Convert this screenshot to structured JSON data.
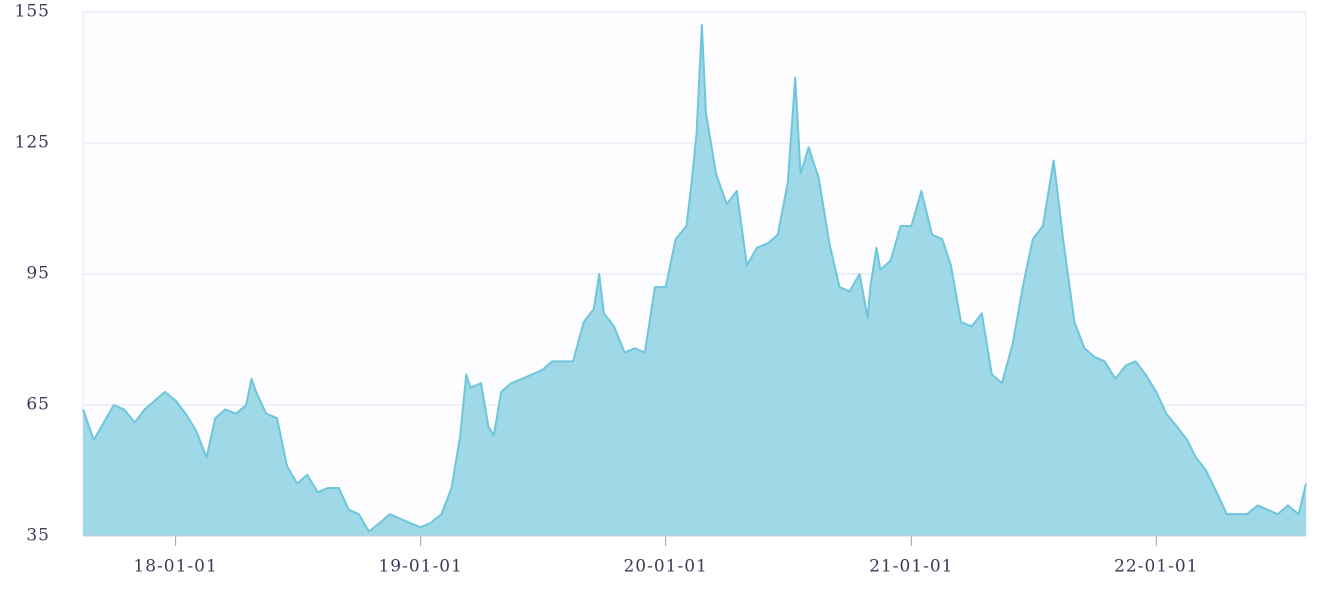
{
  "chart_data": {
    "type": "area",
    "x": [
      "17-08-16",
      "17-09-01",
      "17-09-16",
      "17-10-01",
      "17-10-16",
      "17-11-01",
      "17-11-16",
      "17-12-01",
      "17-12-16",
      "18-01-01",
      "18-01-16",
      "18-02-01",
      "18-02-16",
      "18-03-01",
      "18-03-16",
      "18-04-01",
      "18-04-16",
      "18-04-24",
      "18-05-01",
      "18-05-16",
      "18-06-01",
      "18-06-16",
      "18-07-01",
      "18-07-16",
      "18-08-01",
      "18-08-16",
      "18-09-01",
      "18-09-16",
      "18-10-01",
      "18-10-16",
      "18-11-01",
      "18-11-16",
      "18-12-01",
      "18-12-16",
      "19-01-01",
      "19-01-16",
      "19-02-01",
      "19-02-16",
      "19-03-01",
      "19-03-10",
      "19-03-16",
      "19-04-01",
      "19-04-12",
      "19-04-20",
      "19-05-01",
      "19-05-16",
      "19-06-01",
      "19-06-16",
      "19-07-01",
      "19-07-16",
      "19-08-01",
      "19-08-16",
      "19-09-01",
      "19-09-16",
      "19-09-24",
      "19-10-01",
      "19-10-16",
      "19-11-01",
      "19-11-16",
      "19-12-01",
      "19-12-16",
      "20-01-01",
      "20-01-16",
      "20-02-01",
      "20-02-08",
      "20-02-16",
      "20-02-24",
      "20-03-01",
      "20-03-16",
      "20-04-01",
      "20-04-16",
      "20-05-01",
      "20-05-16",
      "20-06-01",
      "20-06-16",
      "20-07-01",
      "20-07-12",
      "20-07-20",
      "20-08-01",
      "20-08-16",
      "20-09-01",
      "20-09-16",
      "20-10-01",
      "20-10-16",
      "20-10-28",
      "20-11-01",
      "20-11-10",
      "20-11-16",
      "20-12-01",
      "20-12-16",
      "21-01-01",
      "21-01-16",
      "21-02-01",
      "21-02-16",
      "21-03-01",
      "21-03-16",
      "21-04-01",
      "21-04-16",
      "21-05-01",
      "21-05-16",
      "21-06-01",
      "21-06-16",
      "21-07-01",
      "21-07-16",
      "21-08-01",
      "21-08-16",
      "21-09-01",
      "21-09-16",
      "21-10-01",
      "21-10-16",
      "21-11-01",
      "21-11-16",
      "21-12-01",
      "21-12-16",
      "22-01-01",
      "22-01-16",
      "22-02-01",
      "22-02-16",
      "22-03-01",
      "22-03-16",
      "22-04-01",
      "22-04-16",
      "22-05-01",
      "22-05-16",
      "22-06-01",
      "22-06-16",
      "22-07-01",
      "22-07-16",
      "22-08-01",
      "22-08-12"
    ],
    "values": [
      64,
      57,
      61,
      65,
      64,
      61,
      64,
      66,
      68,
      66,
      63,
      59,
      53,
      62,
      64,
      63,
      65,
      71,
      68,
      63,
      62,
      51,
      47,
      49,
      45,
      46,
      46,
      41,
      40,
      36,
      38,
      40,
      39,
      38,
      37,
      38,
      40,
      46,
      58,
      72,
      69,
      70,
      60,
      58,
      68,
      70,
      71,
      72,
      73,
      75,
      75,
      75,
      84,
      87,
      95,
      86,
      83,
      77,
      78,
      77,
      92,
      92,
      103,
      106,
      115,
      127,
      152,
      132,
      118,
      111,
      114,
      97,
      101,
      102,
      104,
      116,
      140,
      118,
      124,
      117,
      102,
      92,
      91,
      95,
      85,
      92,
      101,
      96,
      98,
      106,
      106,
      114,
      104,
      103,
      97,
      84,
      83,
      86,
      72,
      70,
      79,
      92,
      103,
      106,
      121,
      102,
      84,
      78,
      76,
      75,
      71,
      74,
      75,
      72,
      68,
      63,
      60,
      57,
      53,
      50,
      45,
      40,
      40,
      40,
      42,
      41,
      40,
      42,
      40,
      47
    ],
    "color": "#6ec6dc",
    "xlim": [
      "17-08-16",
      "22-08-12"
    ],
    "xticks": [
      "18-01-01",
      "19-01-01",
      "20-01-01",
      "21-01-01",
      "22-01-01"
    ],
    "ylim": [
      35,
      155
    ],
    "yticks": [
      35,
      65,
      95,
      125,
      155
    ],
    "grid": true
  }
}
